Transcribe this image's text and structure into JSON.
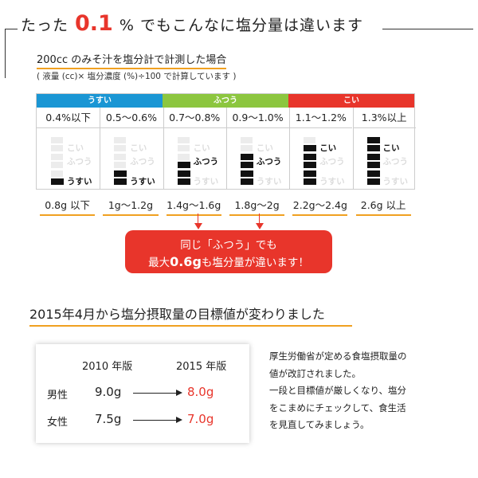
{
  "heading": {
    "pre": "たった",
    "number": "0.1",
    "post": "% でもこんなに塩分量は違います"
  },
  "subtitle": "200cc のみそ汁を塩分計で計測した場合",
  "formula": "( 液量 (cc)× 塩分濃度 (%)÷100 で計算しています )",
  "categories": [
    {
      "label": "うすい",
      "color": "#1a96d4"
    },
    {
      "label": "ふつう",
      "color": "#8cc63f"
    },
    {
      "label": "こい",
      "color": "#e8352b"
    }
  ],
  "level_labels": {
    "top": "こい",
    "mid": "ふつう",
    "low": "うすい"
  },
  "columns": [
    {
      "range": "0.4%以下",
      "amount": "0.8g 以下",
      "level": 1,
      "level_name": "うすい"
    },
    {
      "range": "0.5〜0.6%",
      "amount": "1g〜1.2g",
      "level": 2,
      "level_name": "うすい"
    },
    {
      "range": "0.7〜0.8%",
      "amount": "1.4g〜1.6g",
      "level": 3,
      "level_name": "ふつう"
    },
    {
      "range": "0.9〜1.0%",
      "amount": "1.8g〜2g",
      "level": 4,
      "level_name": "ふつう"
    },
    {
      "range": "1.1〜1.2%",
      "amount": "2.2g〜2.4g",
      "level": 5,
      "level_name": "こい"
    },
    {
      "range": "1.3%以上",
      "amount": "2.6g 以上",
      "level": 6,
      "level_name": "こい"
    }
  ],
  "callout": {
    "line1": "同じ「ふつう」でも",
    "line2_pre": "最大",
    "line2_bold": "0.6g",
    "line2_post": "も塩分量が違います！"
  },
  "section2": {
    "title": "2015年4月から塩分摂取量の目標値が変わりました",
    "year_old": "2010 年版",
    "year_new": "2015 年版",
    "rows": [
      {
        "sex": "男性",
        "old": "9.0g",
        "new": "8.0g"
      },
      {
        "sex": "女性",
        "old": "7.5g",
        "new": "7.0g"
      }
    ]
  },
  "note": [
    "厚生労働省が定める食塩摂取量の",
    "値が改訂されました。",
    "一段と目標値が厳しくなり、塩分",
    "をこまめにチェックして、食生活",
    "を見直してみましょう。"
  ]
}
